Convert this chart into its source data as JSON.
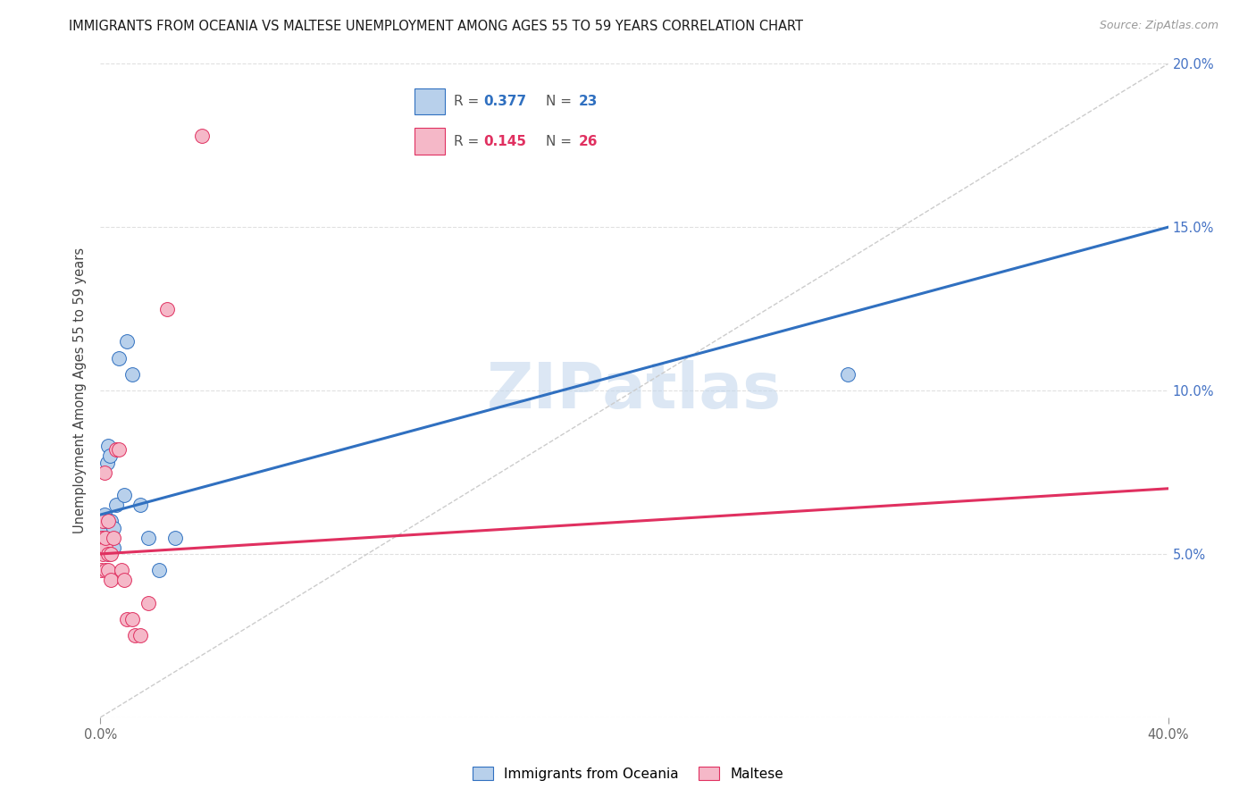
{
  "title": "IMMIGRANTS FROM OCEANIA VS MALTESE UNEMPLOYMENT AMONG AGES 55 TO 59 YEARS CORRELATION CHART",
  "source": "Source: ZipAtlas.com",
  "ylabel": "Unemployment Among Ages 55 to 59 years",
  "xlim": [
    0,
    0.4
  ],
  "ylim": [
    0,
    0.2
  ],
  "xticks": [
    0.0,
    0.4
  ],
  "xticklabels": [
    "0.0%",
    "40.0%"
  ],
  "yticks": [
    0.0,
    0.05,
    0.1,
    0.15,
    0.2
  ],
  "yticklabels": [
    "",
    "5.0%",
    "10.0%",
    "15.0%",
    "20.0%"
  ],
  "legend_r1": "0.377",
  "legend_n1": "23",
  "legend_r2": "0.145",
  "legend_n2": "26",
  "series1_color": "#b8d0eb",
  "series2_color": "#f5b8c8",
  "trendline1_color": "#3070c0",
  "trendline2_color": "#e03060",
  "refline_color": "#cccccc",
  "watermark": "ZIPatlas",
  "watermark_color": "#c5d8ed",
  "blue_trend_x0": 0.0,
  "blue_trend_y0": 0.062,
  "blue_trend_x1": 0.4,
  "blue_trend_y1": 0.15,
  "pink_trend_x0": 0.0,
  "pink_trend_y0": 0.05,
  "pink_trend_x1": 0.4,
  "pink_trend_y1": 0.07,
  "blue_x": [
    0.0005,
    0.001,
    0.0015,
    0.002,
    0.002,
    0.0025,
    0.003,
    0.003,
    0.0035,
    0.004,
    0.004,
    0.005,
    0.005,
    0.006,
    0.007,
    0.009,
    0.01,
    0.012,
    0.015,
    0.018,
    0.022,
    0.028,
    0.28
  ],
  "blue_y": [
    0.055,
    0.058,
    0.062,
    0.055,
    0.06,
    0.078,
    0.05,
    0.083,
    0.08,
    0.055,
    0.06,
    0.052,
    0.058,
    0.065,
    0.11,
    0.068,
    0.115,
    0.105,
    0.065,
    0.055,
    0.045,
    0.055,
    0.105
  ],
  "pink_x": [
    0.0003,
    0.0005,
    0.001,
    0.001,
    0.001,
    0.0015,
    0.002,
    0.002,
    0.002,
    0.003,
    0.003,
    0.003,
    0.004,
    0.004,
    0.005,
    0.006,
    0.007,
    0.008,
    0.009,
    0.01,
    0.012,
    0.013,
    0.015,
    0.018,
    0.025,
    0.038
  ],
  "pink_y": [
    0.045,
    0.055,
    0.05,
    0.055,
    0.06,
    0.075,
    0.045,
    0.052,
    0.055,
    0.045,
    0.05,
    0.06,
    0.042,
    0.05,
    0.055,
    0.082,
    0.082,
    0.045,
    0.042,
    0.03,
    0.03,
    0.025,
    0.025,
    0.035,
    0.125,
    0.178
  ],
  "grid_color": "#e0e0e0",
  "tick_color": "#999999",
  "ylabel_color": "#444444",
  "ytick_color": "#4472c4",
  "title_fontsize": 10.5,
  "source_fontsize": 9,
  "axis_fontsize": 10.5,
  "marker_size": 130
}
